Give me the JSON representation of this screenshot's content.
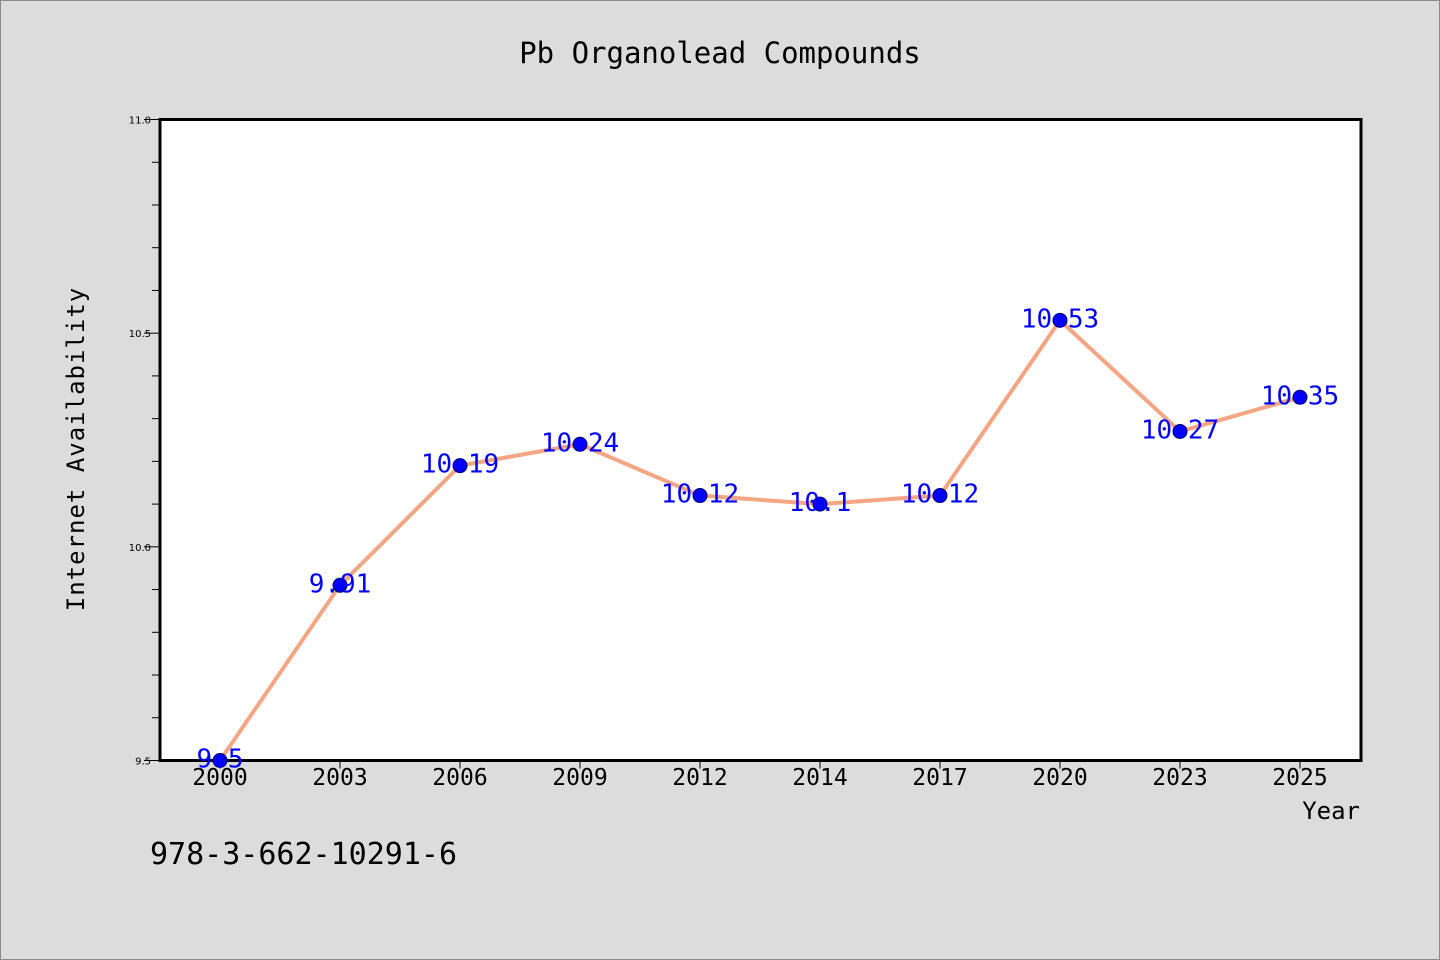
{
  "chart_data": {
    "type": "line",
    "title": "Pb Organolead Compounds",
    "xlabel": "Year",
    "ylabel": "Internet Availability",
    "categories": [
      "2000",
      "2003",
      "2006",
      "2009",
      "2012",
      "2014",
      "2017",
      "2020",
      "2023",
      "2025"
    ],
    "series": [
      {
        "values": [
          9.5,
          9.91,
          10.19,
          10.24,
          10.12,
          10.1,
          10.12,
          10.53,
          10.27,
          10.35
        ]
      }
    ],
    "data_labels": [
      "9.5",
      "9.91",
      "10.19",
      "10.24",
      "10.12",
      "10.1",
      "10.12",
      "10.53",
      "10.27",
      "10.35"
    ],
    "ylim": [
      9.5,
      11.0
    ],
    "yticks": [
      "9.5",
      "10.0",
      "10.5",
      "11.0"
    ],
    "grid": false,
    "legend": "none",
    "colors": {
      "line": "#f4a582",
      "marker": "#0000ff",
      "label": "#0000ff",
      "background": "#dcdcdc",
      "plot": "#ffffff"
    }
  },
  "footer": {
    "isbn": "978-3-662-10291-6"
  }
}
